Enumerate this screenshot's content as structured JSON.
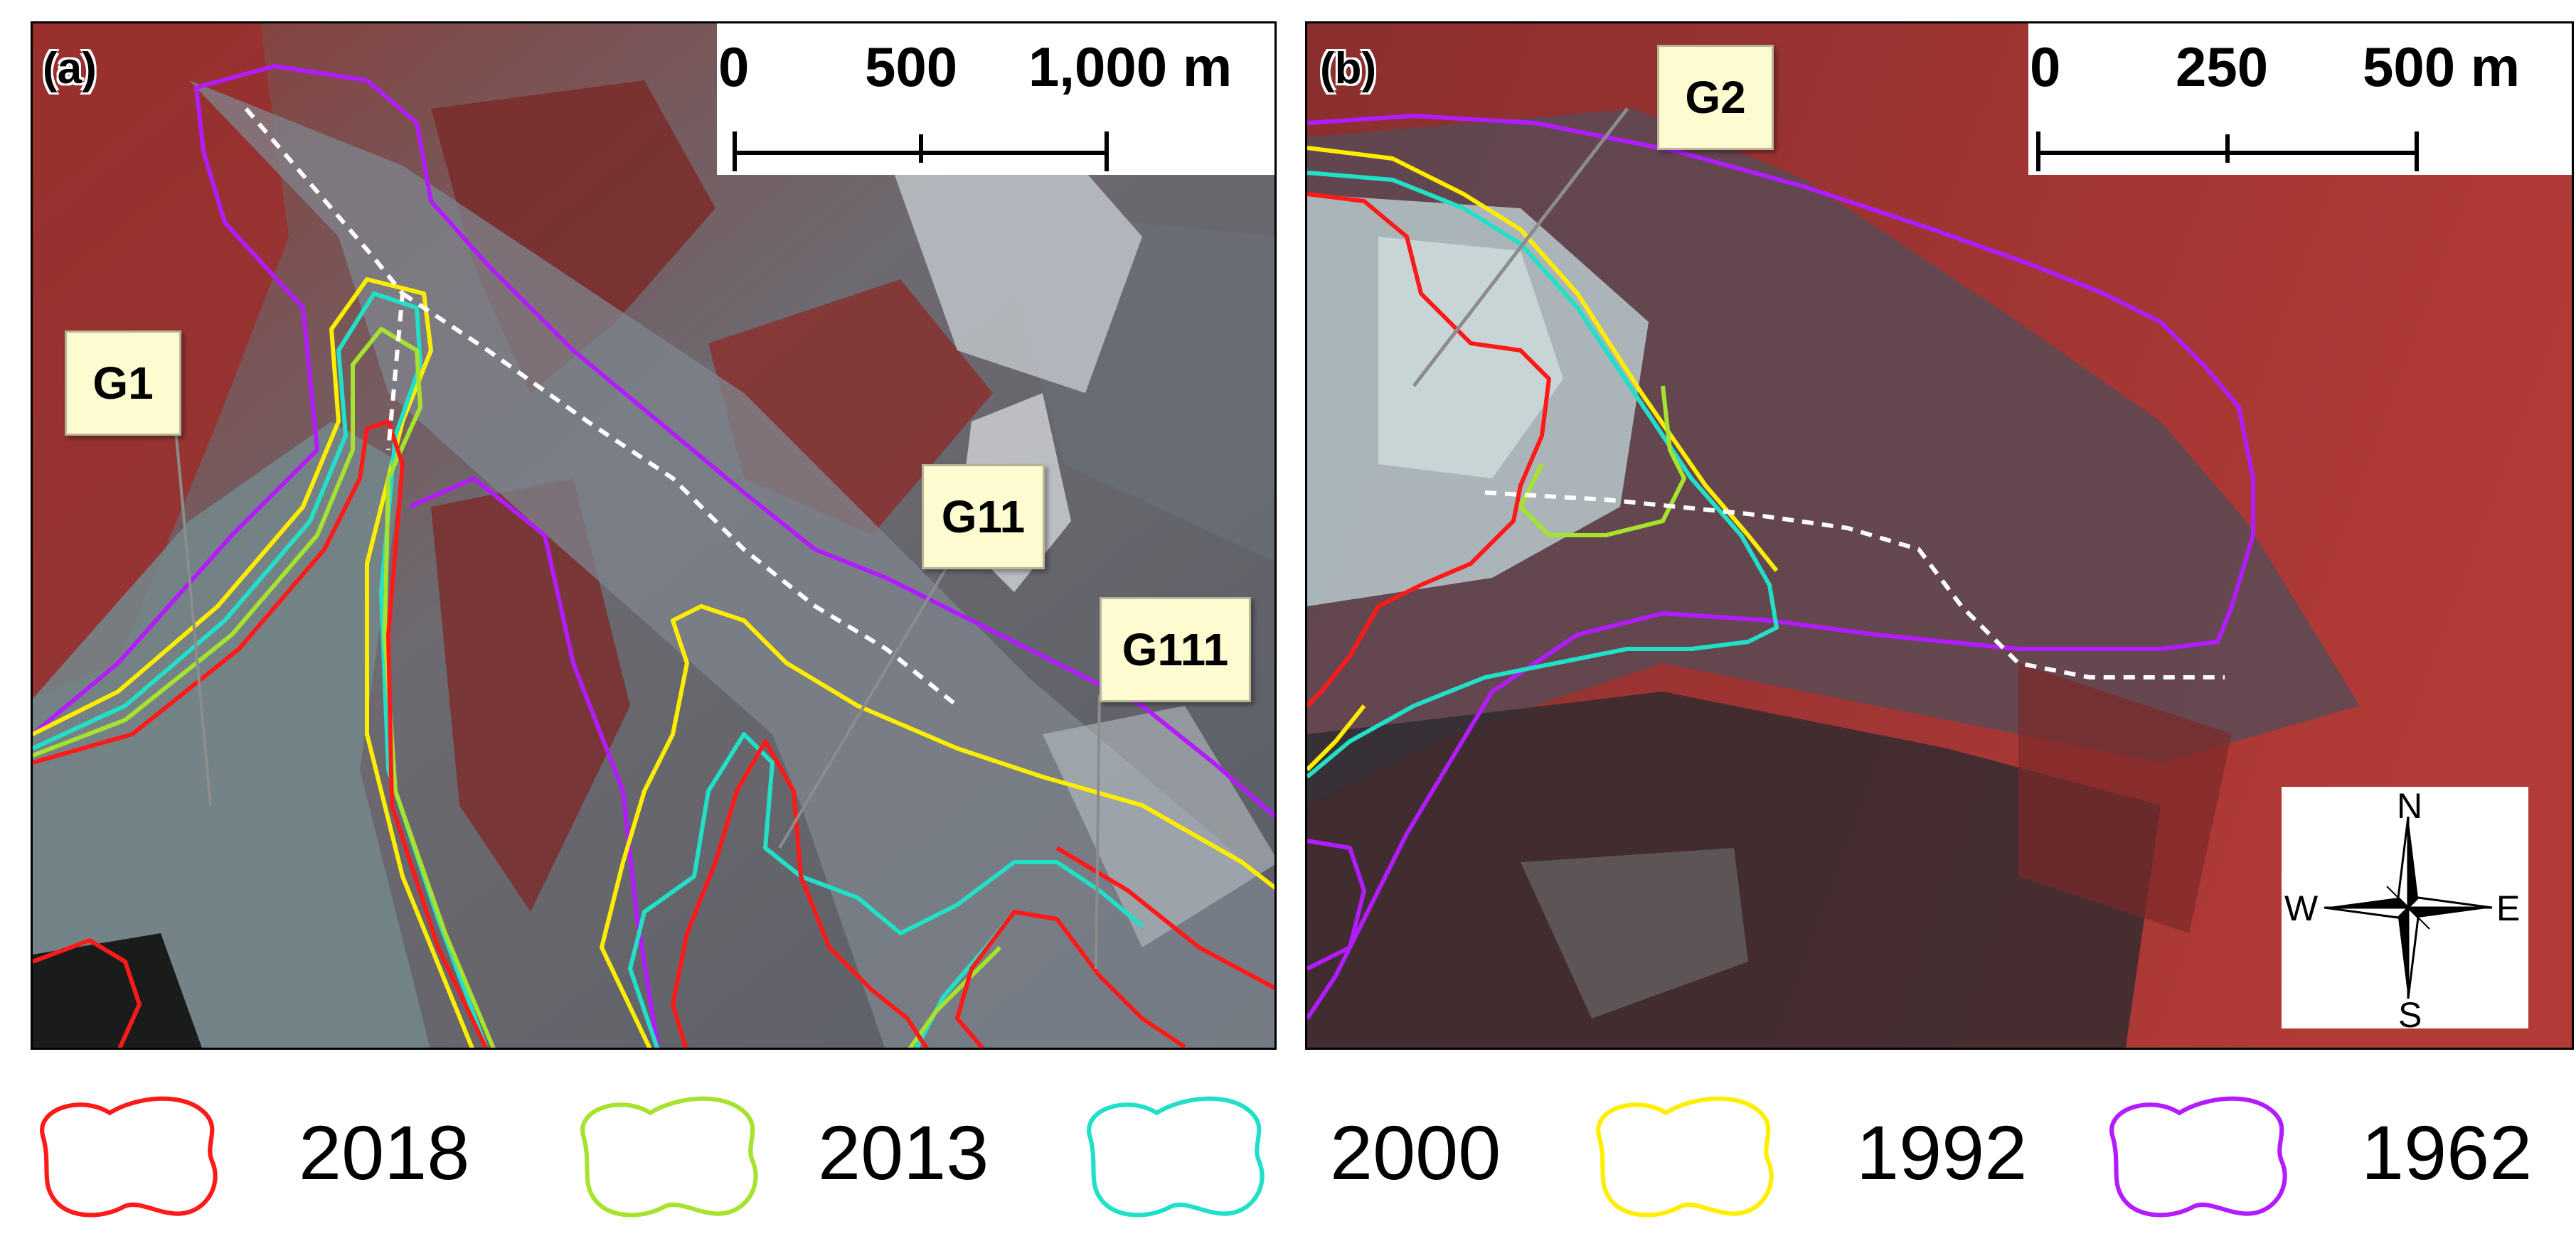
{
  "panel_a": {
    "label": "(a)",
    "scale": {
      "ticks": [
        "0",
        "500",
        "1,000 m"
      ]
    },
    "callouts": [
      "G1",
      "G11",
      "G111"
    ]
  },
  "panel_b": {
    "label": "(b)",
    "scale": {
      "ticks": [
        "0",
        "250",
        "500 m"
      ]
    },
    "callouts": [
      "G2"
    ],
    "compass": {
      "n": "N",
      "e": "E",
      "s": "S",
      "w": "W"
    }
  },
  "legend": [
    {
      "year": "2018",
      "color": "#ff1a1a"
    },
    {
      "year": "2013",
      "color": "#a6e22e"
    },
    {
      "year": "2000",
      "color": "#22e0c8"
    },
    {
      "year": "1992",
      "color": "#ffee00"
    },
    {
      "year": "1962",
      "color": "#b21cff"
    }
  ],
  "centerline_color": "#ffffff",
  "icons": {
    "compass": "compass-rose-icon",
    "legend_shape": "outline-swatch-icon"
  }
}
